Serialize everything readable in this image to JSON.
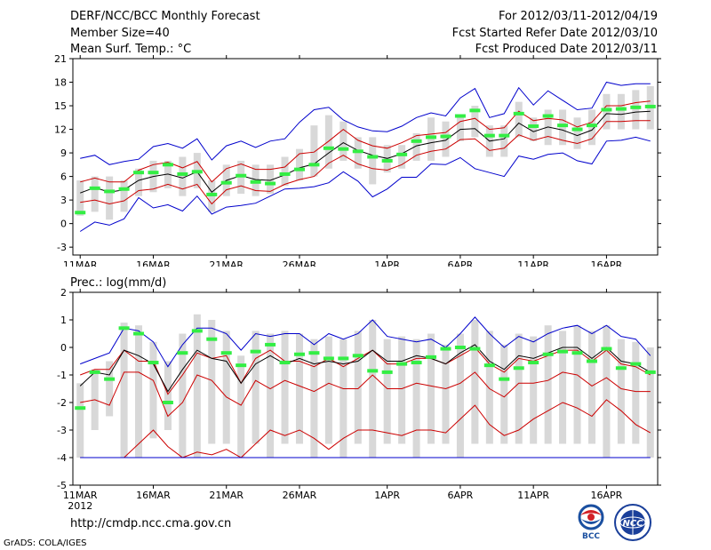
{
  "header": {
    "title": "DERF/NCC/BCC Monthly Forecast",
    "member_size": "Member Size=40",
    "variable": "Mean Surf. Temp.: °C",
    "period": "For 2012/03/11-2012/04/19",
    "started": "Fcst Started Refer Date 2012/03/10",
    "produced": "Fcst Produced Date 2012/03/11"
  },
  "colors": {
    "envelope": "#0000cc",
    "spread": "#cc0000",
    "mean": "#000000",
    "box": "#d8d8d8",
    "observed": "#33ee44"
  },
  "chart_data": [
    {
      "type": "line",
      "title": "Mean Surf. Temp.: °C",
      "x": [
        1,
        2,
        3,
        4,
        5,
        6,
        7,
        8,
        9,
        10,
        11,
        12,
        13,
        14,
        15,
        16,
        17,
        18,
        19,
        20,
        21,
        22,
        23,
        24,
        25,
        26,
        27,
        28,
        29,
        30,
        31,
        32,
        33,
        34,
        35,
        36,
        37,
        38,
        39,
        40
      ],
      "ylim": [
        -4,
        21
      ],
      "yticks": [
        -3,
        0,
        3,
        6,
        9,
        12,
        15,
        18,
        21
      ],
      "xtick_positions": [
        1,
        6,
        11,
        16,
        22,
        27,
        32,
        37
      ],
      "xtick_labels": [
        "11MAR",
        "16MAR",
        "21MAR",
        "26MAR",
        "1APR",
        "6APR",
        "11APR",
        "16APR"
      ],
      "xtick_sublabel": "2012",
      "series": [
        {
          "name": "max",
          "values": [
            8.3,
            8.7,
            7.5,
            7.9,
            8.2,
            9.8,
            10.2,
            9.6,
            10.8,
            8.1,
            9.9,
            10.5,
            9.7,
            10.5,
            10.8,
            12.9,
            14.5,
            14.8,
            13.2,
            12.3,
            11.8,
            11.7,
            12.4,
            13.5,
            14.1,
            13.7,
            16.0,
            17.2,
            13.5,
            14.0,
            17.3,
            15.1,
            16.9,
            15.7,
            14.5,
            14.7,
            18.0,
            17.6,
            17.8,
            17.8
          ]
        },
        {
          "name": "upper",
          "values": [
            5.3,
            5.8,
            5.3,
            5.3,
            6.8,
            7.5,
            7.8,
            7.1,
            7.9,
            5.3,
            7.0,
            7.6,
            6.9,
            6.9,
            7.2,
            8.9,
            9.1,
            10.5,
            12.0,
            10.6,
            9.9,
            9.6,
            10.3,
            11.2,
            11.4,
            11.6,
            13.0,
            13.4,
            12.0,
            12.2,
            14.3,
            13.1,
            13.4,
            13.2,
            12.3,
            12.9,
            15.0,
            15.0,
            15.4,
            15.6
          ]
        },
        {
          "name": "mean",
          "values": [
            3.9,
            4.6,
            4.0,
            4.3,
            5.5,
            6.0,
            6.3,
            5.8,
            6.6,
            4.0,
            5.5,
            6.1,
            5.6,
            5.5,
            6.2,
            7.1,
            7.6,
            9.0,
            10.3,
            9.3,
            8.7,
            8.3,
            8.9,
            9.9,
            10.3,
            10.6,
            12.0,
            12.1,
            10.5,
            10.8,
            12.8,
            11.7,
            12.3,
            11.9,
            11.2,
            11.9,
            14.0,
            13.9,
            14.2,
            14.3
          ]
        },
        {
          "name": "lower",
          "values": [
            2.7,
            3.0,
            2.5,
            2.9,
            4.2,
            4.4,
            5.0,
            4.4,
            5.0,
            2.5,
            4.3,
            4.8,
            4.2,
            4.1,
            5.0,
            5.6,
            6.0,
            7.7,
            8.7,
            7.6,
            7.0,
            6.8,
            7.5,
            8.7,
            9.2,
            9.5,
            10.7,
            10.8,
            9.3,
            9.6,
            11.3,
            10.6,
            11.1,
            10.6,
            10.2,
            10.8,
            13.0,
            13.0,
            13.1,
            13.1
          ]
        },
        {
          "name": "min",
          "values": [
            -1.0,
            0.2,
            -0.2,
            0.6,
            3.3,
            2.0,
            2.4,
            1.6,
            3.5,
            1.2,
            2.1,
            2.3,
            2.6,
            3.5,
            4.4,
            4.5,
            4.7,
            5.2,
            6.6,
            5.4,
            3.4,
            4.4,
            5.9,
            5.9,
            7.6,
            7.5,
            8.4,
            7.0,
            6.5,
            6.0,
            8.6,
            8.2,
            8.8,
            9.0,
            8.0,
            7.6,
            10.5,
            10.6,
            11.0,
            10.5
          ]
        }
      ],
      "box_low": [
        1.0,
        1.5,
        0.5,
        1.5,
        3.5,
        4.0,
        4.5,
        3.5,
        4.5,
        1.5,
        3.5,
        3.8,
        3.5,
        3.8,
        4.8,
        5.5,
        6.0,
        7.0,
        8.0,
        7.0,
        5.0,
        6.5,
        7.0,
        8.0,
        8.0,
        8.5,
        10.5,
        11.0,
        8.5,
        8.5,
        11.0,
        10.5,
        10.0,
        10.0,
        9.5,
        10.0,
        12.0,
        12.0,
        12.0,
        12.0
      ],
      "box_high": [
        5.5,
        6.0,
        6.0,
        5.5,
        7.0,
        8.0,
        8.0,
        8.5,
        9.0,
        5.5,
        7.5,
        8.0,
        7.5,
        7.5,
        8.5,
        9.5,
        12.5,
        13.8,
        13.0,
        11.0,
        11.0,
        10.0,
        10.0,
        11.5,
        13.5,
        13.0,
        13.5,
        15.0,
        12.5,
        12.5,
        15.5,
        13.5,
        14.5,
        14.5,
        13.5,
        14.5,
        16.5,
        16.5,
        17.0,
        17.5
      ],
      "observed": [
        1.4,
        4.5,
        4.1,
        4.4,
        6.5,
        6.5,
        7.5,
        6.3,
        6.6,
        3.7,
        5.2,
        6.1,
        5.3,
        5.1,
        6.3,
        6.9,
        7.5,
        9.6,
        9.5,
        9.2,
        8.5,
        8.0,
        8.8,
        10.5,
        11.0,
        11.1,
        13.7,
        14.4,
        11.2,
        11.2,
        14.0,
        12.4,
        13.7,
        12.5,
        12.0,
        12.5,
        14.5,
        14.6,
        14.8,
        14.9
      ]
    },
    {
      "type": "line",
      "title": "Prec.: log(mm/d)",
      "x": [
        1,
        2,
        3,
        4,
        5,
        6,
        7,
        8,
        9,
        10,
        11,
        12,
        13,
        14,
        15,
        16,
        17,
        18,
        19,
        20,
        21,
        22,
        23,
        24,
        25,
        26,
        27,
        28,
        29,
        30,
        31,
        32,
        33,
        34,
        35,
        36,
        37,
        38,
        39,
        40
      ],
      "ylim": [
        -5,
        2
      ],
      "yticks": [
        -5,
        -4,
        -3,
        -2,
        -1,
        0,
        1,
        2
      ],
      "xtick_positions": [
        1,
        6,
        11,
        16,
        22,
        27,
        32,
        37
      ],
      "xtick_labels": [
        "11MAR",
        "16MAR",
        "21MAR",
        "26MAR",
        "1APR",
        "6APR",
        "11APR",
        "16APR"
      ],
      "xtick_sublabel": "2012",
      "series": [
        {
          "name": "max",
          "values": [
            -0.6,
            -0.4,
            -0.2,
            0.7,
            0.6,
            0.2,
            -0.7,
            0.1,
            0.7,
            0.7,
            0.5,
            -0.1,
            0.5,
            0.4,
            0.5,
            0.5,
            0.1,
            0.5,
            0.3,
            0.5,
            1.0,
            0.4,
            0.3,
            0.2,
            0.3,
            0.0,
            0.5,
            1.1,
            0.5,
            0.0,
            0.4,
            0.2,
            0.5,
            0.7,
            0.8,
            0.5,
            0.8,
            0.4,
            0.3,
            -0.3
          ]
        },
        {
          "name": "upper",
          "values": [
            -1.0,
            -0.8,
            -0.8,
            -0.1,
            -0.5,
            -0.5,
            -1.7,
            -1.0,
            -0.2,
            -0.4,
            -0.3,
            -1.3,
            -0.4,
            -0.1,
            -0.5,
            -0.5,
            -0.7,
            -0.4,
            -0.7,
            -0.4,
            -0.1,
            -0.6,
            -0.6,
            -0.4,
            -0.4,
            -0.6,
            -0.3,
            0.0,
            -0.6,
            -0.9,
            -0.4,
            -0.5,
            -0.3,
            -0.1,
            -0.1,
            -0.5,
            -0.1,
            -0.6,
            -0.7,
            -1.0
          ]
        },
        {
          "name": "mean",
          "values": [
            -1.4,
            -0.9,
            -1.0,
            -0.1,
            -0.3,
            -0.6,
            -1.6,
            -0.8,
            -0.1,
            -0.4,
            -0.5,
            -1.3,
            -0.6,
            -0.3,
            -0.6,
            -0.4,
            -0.6,
            -0.5,
            -0.6,
            -0.5,
            -0.1,
            -0.5,
            -0.5,
            -0.3,
            -0.4,
            -0.6,
            -0.2,
            0.1,
            -0.5,
            -0.8,
            -0.3,
            -0.4,
            -0.2,
            0.0,
            0.0,
            -0.4,
            0.0,
            -0.5,
            -0.6,
            -0.9
          ]
        },
        {
          "name": "lower",
          "values": [
            -2.0,
            -1.9,
            -2.1,
            -0.9,
            -0.9,
            -1.2,
            -2.5,
            -2.0,
            -1.0,
            -1.2,
            -1.8,
            -2.1,
            -1.2,
            -1.5,
            -1.2,
            -1.4,
            -1.6,
            -1.3,
            -1.5,
            -1.5,
            -1.0,
            -1.5,
            -1.5,
            -1.3,
            -1.4,
            -1.5,
            -1.3,
            -0.9,
            -1.5,
            -1.8,
            -1.3,
            -1.3,
            -1.2,
            -0.9,
            -1.0,
            -1.4,
            -1.1,
            -1.5,
            -1.6,
            -1.6
          ]
        },
        {
          "name": "low",
          "values": [
            -4.0,
            -4.0,
            -4.0,
            -4.0,
            -3.5,
            -3.0,
            -3.6,
            -4.0,
            -3.8,
            -3.9,
            -3.7,
            -4.0,
            -3.5,
            -3.0,
            -3.2,
            -3.0,
            -3.3,
            -3.7,
            -3.3,
            -3.0,
            -3.0,
            -3.1,
            -3.2,
            -3.0,
            -3.0,
            -3.1,
            -2.6,
            -2.1,
            -2.8,
            -3.2,
            -3.0,
            -2.6,
            -2.3,
            -2.0,
            -2.2,
            -2.5,
            -1.9,
            -2.3,
            -2.8,
            -3.1
          ]
        },
        {
          "name": "min",
          "values": [
            -4.0,
            -4.0,
            -4.0,
            -4.0,
            -4.0,
            -4.0,
            -4.0,
            -4.0,
            -4.0,
            -4.0,
            -4.0,
            -4.0,
            -4.0,
            -4.0,
            -4.0,
            -4.0,
            -4.0,
            -4.0,
            -4.0,
            -4.0,
            -4.0,
            -4.0,
            -4.0,
            -4.0,
            -4.0,
            -4.0,
            -4.0,
            -4.0,
            -4.0,
            -4.0,
            -4.0,
            -4.0,
            -4.0,
            -4.0,
            -4.0,
            -4.0,
            -4.0,
            -4.0,
            -4.0,
            -4.0
          ]
        }
      ],
      "box_low": [
        -4.0,
        -3.0,
        -2.5,
        -4.0,
        -4.0,
        -3.3,
        -3.0,
        -4.0,
        -4.0,
        -3.5,
        -3.5,
        -4.0,
        -3.5,
        -4.0,
        -3.5,
        -3.5,
        -4.0,
        -3.5,
        -4.0,
        -3.5,
        -4.0,
        -3.5,
        -3.5,
        -4.0,
        -3.5,
        -3.5,
        -4.0,
        -3.5,
        -3.5,
        -3.5,
        -3.5,
        -3.5,
        -3.5,
        -3.5,
        -3.5,
        -3.5,
        -4.0,
        -3.5,
        -3.5,
        -4.0
      ],
      "box_high": [
        -1.3,
        -0.8,
        -0.5,
        0.9,
        0.8,
        0.2,
        -0.5,
        0.5,
        1.2,
        1.0,
        0.6,
        -0.3,
        0.6,
        0.5,
        0.6,
        0.5,
        0.3,
        0.4,
        0.3,
        0.6,
        1.0,
        0.3,
        0.4,
        0.3,
        0.5,
        0.1,
        0.5,
        1.0,
        0.6,
        0.1,
        0.5,
        0.4,
        0.8,
        0.6,
        0.8,
        0.6,
        0.8,
        0.3,
        0.2,
        0.0
      ],
      "observed": [
        -2.2,
        -0.9,
        -1.15,
        0.7,
        0.5,
        -0.55,
        -2.0,
        -0.2,
        0.6,
        0.3,
        -0.2,
        -0.65,
        -0.15,
        0.1,
        -0.55,
        -0.25,
        -0.2,
        -0.4,
        -0.4,
        -0.3,
        -0.85,
        -0.9,
        -0.6,
        -0.55,
        -0.35,
        -0.05,
        0.0,
        -0.05,
        -0.65,
        -1.15,
        -0.75,
        -0.55,
        -0.25,
        -0.15,
        -0.2,
        -0.5,
        -0.05,
        -0.75,
        -0.6,
        -0.9
      ]
    }
  ],
  "footer": {
    "url": "http://cmdp.ncc.cma.gov.cn",
    "credit": "GrADS: COLA/IGES",
    "logo_bcc": "BCC",
    "logo_ncc": "NCC"
  }
}
